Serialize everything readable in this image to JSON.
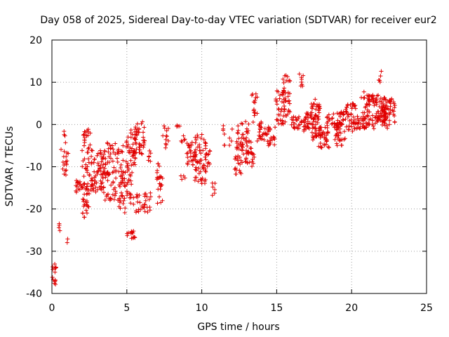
{
  "chart_data": {
    "type": "scatter",
    "title": "Day 058 of 2025, Sidereal Day-to-day VTEC variation (SDTVAR) for receiver eur2",
    "xlabel": "GPS time / hours",
    "ylabel": "SDTVAR / TECUs",
    "xlim": [
      0,
      25
    ],
    "ylim": [
      -40,
      20
    ],
    "xticks": [
      0,
      5,
      10,
      15,
      20,
      25
    ],
    "yticks": [
      -40,
      -30,
      -20,
      -10,
      0,
      10,
      20
    ],
    "grid": true,
    "marker": "+",
    "series_color": "#e00000",
    "clusters": [
      {
        "x0": 0.0,
        "x1": 0.3,
        "y0": -39,
        "y1": -33,
        "n": 14
      },
      {
        "x0": 0.45,
        "x1": 0.55,
        "y0": -26,
        "y1": -21,
        "n": 4
      },
      {
        "x0": 0.6,
        "x1": 1.1,
        "y0": -12,
        "y1": -1,
        "n": 22
      },
      {
        "x0": 1.0,
        "x1": 1.1,
        "y0": -29,
        "y1": -27,
        "n": 2
      },
      {
        "x0": 1.6,
        "x1": 2.0,
        "y0": -17,
        "y1": -13,
        "n": 16
      },
      {
        "x0": 2.0,
        "x1": 2.5,
        "y0": -22,
        "y1": -14,
        "n": 30
      },
      {
        "x0": 2.0,
        "x1": 2.6,
        "y0": -16,
        "y1": -1,
        "n": 40
      },
      {
        "x0": 2.6,
        "x1": 3.6,
        "y0": -16,
        "y1": -6,
        "n": 70
      },
      {
        "x0": 3.4,
        "x1": 4.3,
        "y0": -18,
        "y1": -4,
        "n": 60
      },
      {
        "x0": 4.3,
        "x1": 4.8,
        "y0": -14,
        "y1": -5,
        "n": 20
      },
      {
        "x0": 4.4,
        "x1": 4.9,
        "y0": -21,
        "y1": -11,
        "n": 30
      },
      {
        "x0": 4.9,
        "x1": 5.6,
        "y0": -10,
        "y1": -1,
        "n": 40
      },
      {
        "x0": 5.0,
        "x1": 5.5,
        "y0": -19,
        "y1": -9,
        "n": 26
      },
      {
        "x0": 5.0,
        "x1": 5.6,
        "y0": -27,
        "y1": -25,
        "n": 14
      },
      {
        "x0": 5.5,
        "x1": 6.2,
        "y0": -7,
        "y1": 1,
        "n": 40
      },
      {
        "x0": 5.6,
        "x1": 6.6,
        "y0": -21,
        "y1": -16,
        "n": 30
      },
      {
        "x0": 6.3,
        "x1": 6.6,
        "y0": -10,
        "y1": -6,
        "n": 6
      },
      {
        "x0": 7.0,
        "x1": 7.4,
        "y0": -19,
        "y1": -9,
        "n": 24
      },
      {
        "x0": 7.4,
        "x1": 7.8,
        "y0": -6,
        "y1": 0,
        "n": 12
      },
      {
        "x0": 8.2,
        "x1": 8.6,
        "y0": -1,
        "y1": 0,
        "n": 4
      },
      {
        "x0": 8.6,
        "x1": 8.9,
        "y0": -5,
        "y1": -2,
        "n": 5
      },
      {
        "x0": 8.6,
        "x1": 8.9,
        "y0": -13,
        "y1": -12,
        "n": 4
      },
      {
        "x0": 9.0,
        "x1": 9.6,
        "y0": -10,
        "y1": -4,
        "n": 30
      },
      {
        "x0": 9.5,
        "x1": 10.3,
        "y0": -14,
        "y1": -2,
        "n": 60
      },
      {
        "x0": 10.2,
        "x1": 10.6,
        "y0": -10,
        "y1": -6,
        "n": 10
      },
      {
        "x0": 10.7,
        "x1": 10.9,
        "y0": -17,
        "y1": -13,
        "n": 6
      },
      {
        "x0": 11.4,
        "x1": 12.1,
        "y0": -5,
        "y1": 0,
        "n": 10
      },
      {
        "x0": 12.2,
        "x1": 12.7,
        "y0": -12,
        "y1": -4,
        "n": 30
      },
      {
        "x0": 12.3,
        "x1": 13.3,
        "y0": -7,
        "y1": 1,
        "n": 40
      },
      {
        "x0": 12.9,
        "x1": 13.5,
        "y0": -10,
        "y1": -6,
        "n": 20
      },
      {
        "x0": 13.2,
        "x1": 13.7,
        "y0": 0,
        "y1": 8,
        "n": 16
      },
      {
        "x0": 13.7,
        "x1": 14.4,
        "y0": -4,
        "y1": 1,
        "n": 26
      },
      {
        "x0": 14.4,
        "x1": 14.9,
        "y0": -5,
        "y1": 0,
        "n": 20
      },
      {
        "x0": 14.9,
        "x1": 15.6,
        "y0": 0,
        "y1": 8,
        "n": 36
      },
      {
        "x0": 15.4,
        "x1": 15.9,
        "y0": 2,
        "y1": 12,
        "n": 30
      },
      {
        "x0": 15.9,
        "x1": 16.7,
        "y0": -1,
        "y1": 2,
        "n": 24
      },
      {
        "x0": 16.5,
        "x1": 16.8,
        "y0": 9,
        "y1": 12,
        "n": 8
      },
      {
        "x0": 16.8,
        "x1": 17.3,
        "y0": -2,
        "y1": 3,
        "n": 30
      },
      {
        "x0": 17.3,
        "x1": 17.9,
        "y0": -3,
        "y1": 6,
        "n": 50
      },
      {
        "x0": 17.4,
        "x1": 17.7,
        "y0": -4,
        "y1": -2,
        "n": 6
      },
      {
        "x0": 17.8,
        "x1": 18.5,
        "y0": -6,
        "y1": 0,
        "n": 40
      },
      {
        "x0": 18.3,
        "x1": 18.8,
        "y0": 0,
        "y1": 3,
        "n": 12
      },
      {
        "x0": 18.8,
        "x1": 19.3,
        "y0": -4,
        "y1": 1,
        "n": 20
      },
      {
        "x0": 19.0,
        "x1": 19.6,
        "y0": -5,
        "y1": 3,
        "n": 40
      },
      {
        "x0": 19.6,
        "x1": 20.3,
        "y0": -2,
        "y1": 5,
        "n": 40
      },
      {
        "x0": 20.3,
        "x1": 21.0,
        "y0": -1,
        "y1": 2,
        "n": 30
      },
      {
        "x0": 20.6,
        "x1": 21.2,
        "y0": 0,
        "y1": 8,
        "n": 20
      },
      {
        "x0": 21.0,
        "x1": 21.8,
        "y0": -1,
        "y1": 7,
        "n": 50
      },
      {
        "x0": 21.6,
        "x1": 22.3,
        "y0": 0,
        "y1": 7,
        "n": 50
      },
      {
        "x0": 21.8,
        "x1": 22.0,
        "y0": 9,
        "y1": 13,
        "n": 5
      },
      {
        "x0": 22.0,
        "x1": 22.6,
        "y0": -1,
        "y1": 6,
        "n": 40
      },
      {
        "x0": 22.6,
        "x1": 22.9,
        "y0": 0,
        "y1": 7,
        "n": 14
      }
    ]
  }
}
